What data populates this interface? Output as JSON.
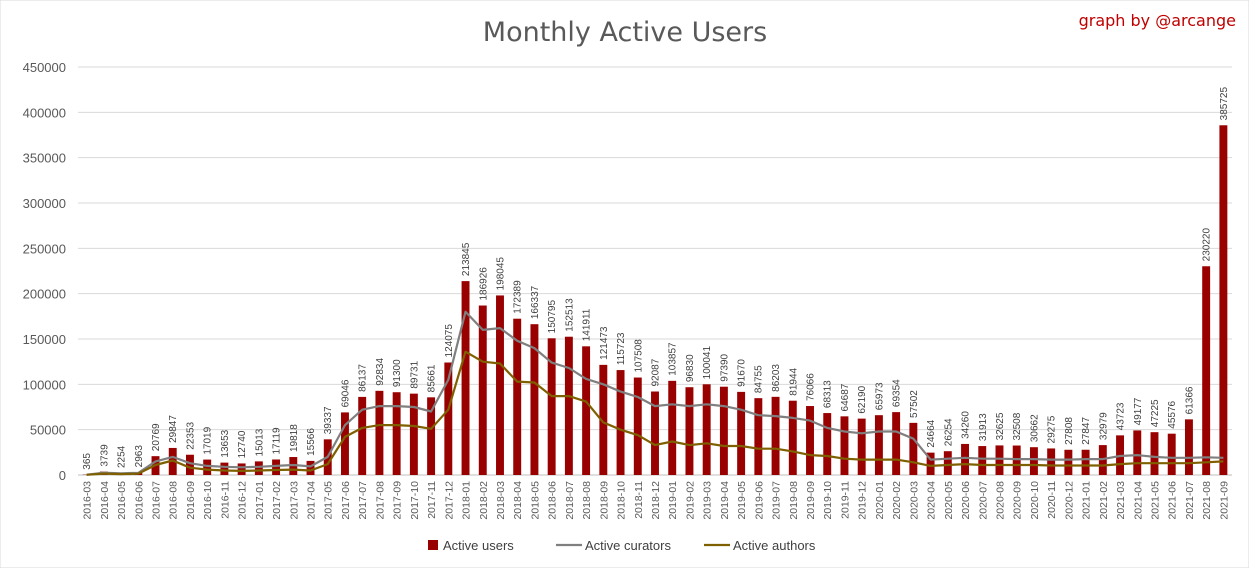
{
  "chart_data": {
    "type": "bar",
    "title": "Monthly Active Users",
    "credit": "graph by @arcange",
    "xlabel": "",
    "ylabel": "",
    "ylim": [
      0,
      450000
    ],
    "yticks": [
      "0",
      "50000",
      "100000",
      "150000",
      "200000",
      "250000",
      "300000",
      "350000",
      "400000",
      "450000"
    ],
    "grid": true,
    "legend_position": "bottom",
    "colors": {
      "users": "#990000",
      "curators": "#7f7f7f",
      "authors": "#7f6000",
      "grid": "#d9d9d9"
    },
    "categories": [
      "2016-03",
      "2016-04",
      "2016-05",
      "2016-06",
      "2016-07",
      "2016-08",
      "2016-09",
      "2016-10",
      "2016-11",
      "2016-12",
      "2017-01",
      "2017-02",
      "2017-03",
      "2017-04",
      "2017-05",
      "2017-06",
      "2017-07",
      "2017-08",
      "2017-09",
      "2017-10",
      "2017-11",
      "2017-12",
      "2018-01",
      "2018-02",
      "2018-03",
      "2018-04",
      "2018-05",
      "2018-06",
      "2018-07",
      "2018-08",
      "2018-09",
      "2018-10",
      "2018-11",
      "2018-12",
      "2019-01",
      "2019-02",
      "2019-03",
      "2019-04",
      "2019-05",
      "2019-06",
      "2019-07",
      "2019-08",
      "2019-09",
      "2019-10",
      "2019-11",
      "2019-12",
      "2020-01",
      "2020-02",
      "2020-03",
      "2020-04",
      "2020-05",
      "2020-06",
      "2020-07",
      "2020-08",
      "2020-09",
      "2020-10",
      "2020-11",
      "2020-12",
      "2021-01",
      "2021-02",
      "2021-03",
      "2021-04",
      "2021-05",
      "2021-06",
      "2021-07",
      "2021-08",
      "2021-09"
    ],
    "series": [
      {
        "name": "Active users",
        "kind": "bar",
        "values": [
          365,
          3739,
          2254,
          2963,
          20769,
          29847,
          22353,
          17019,
          13653,
          12740,
          15013,
          17119,
          19818,
          15566,
          39337,
          69046,
          86137,
          92834,
          91300,
          89731,
          85661,
          124075,
          213845,
          186926,
          198045,
          172389,
          166337,
          150795,
          152513,
          141911,
          121473,
          115723,
          107508,
          92087,
          103857,
          96830,
          100041,
          97390,
          91670,
          84755,
          86203,
          81944,
          76066,
          68313,
          64687,
          62190,
          65973,
          69354,
          57502,
          24664,
          26254,
          34260,
          31913,
          32625,
          32508,
          30662,
          29275,
          27808,
          27847,
          32979,
          43723,
          49177,
          47225,
          45576,
          61366,
          230220,
          385725
        ]
      },
      {
        "name": "Active curators",
        "kind": "line",
        "values": [
          300,
          2500,
          1900,
          2300,
          15000,
          20000,
          13000,
          10000,
          9000,
          8500,
          9000,
          10000,
          11000,
          9500,
          20000,
          55000,
          72000,
          76000,
          76000,
          75000,
          70000,
          105000,
          180000,
          160000,
          162000,
          148000,
          140000,
          124000,
          118000,
          106000,
          100000,
          92000,
          86000,
          76000,
          78000,
          76000,
          78000,
          76000,
          72000,
          66000,
          65000,
          63000,
          60000,
          52000,
          48000,
          46000,
          48000,
          48000,
          40000,
          17000,
          18000,
          19000,
          18000,
          18000,
          17500,
          17500,
          17000,
          17000,
          17500,
          17500,
          21000,
          22000,
          20000,
          19000,
          19000,
          19500,
          19000
        ]
      },
      {
        "name": "Active authors",
        "kind": "line",
        "values": [
          200,
          1500,
          1000,
          1400,
          11000,
          16000,
          8000,
          6000,
          5000,
          4500,
          5000,
          5500,
          6000,
          5000,
          12000,
          42000,
          52000,
          55000,
          55000,
          54000,
          51000,
          72000,
          136000,
          125000,
          123000,
          103000,
          102000,
          87000,
          87000,
          81000,
          58000,
          50000,
          44000,
          33000,
          37000,
          33000,
          35000,
          32000,
          32000,
          29000,
          29000,
          26000,
          22000,
          21000,
          18000,
          17000,
          17000,
          17000,
          14000,
          10000,
          11000,
          12000,
          11000,
          11000,
          11000,
          11000,
          10500,
          10500,
          10500,
          10500,
          12000,
          13000,
          13000,
          13000,
          13000,
          14000,
          15000
        ]
      }
    ]
  }
}
